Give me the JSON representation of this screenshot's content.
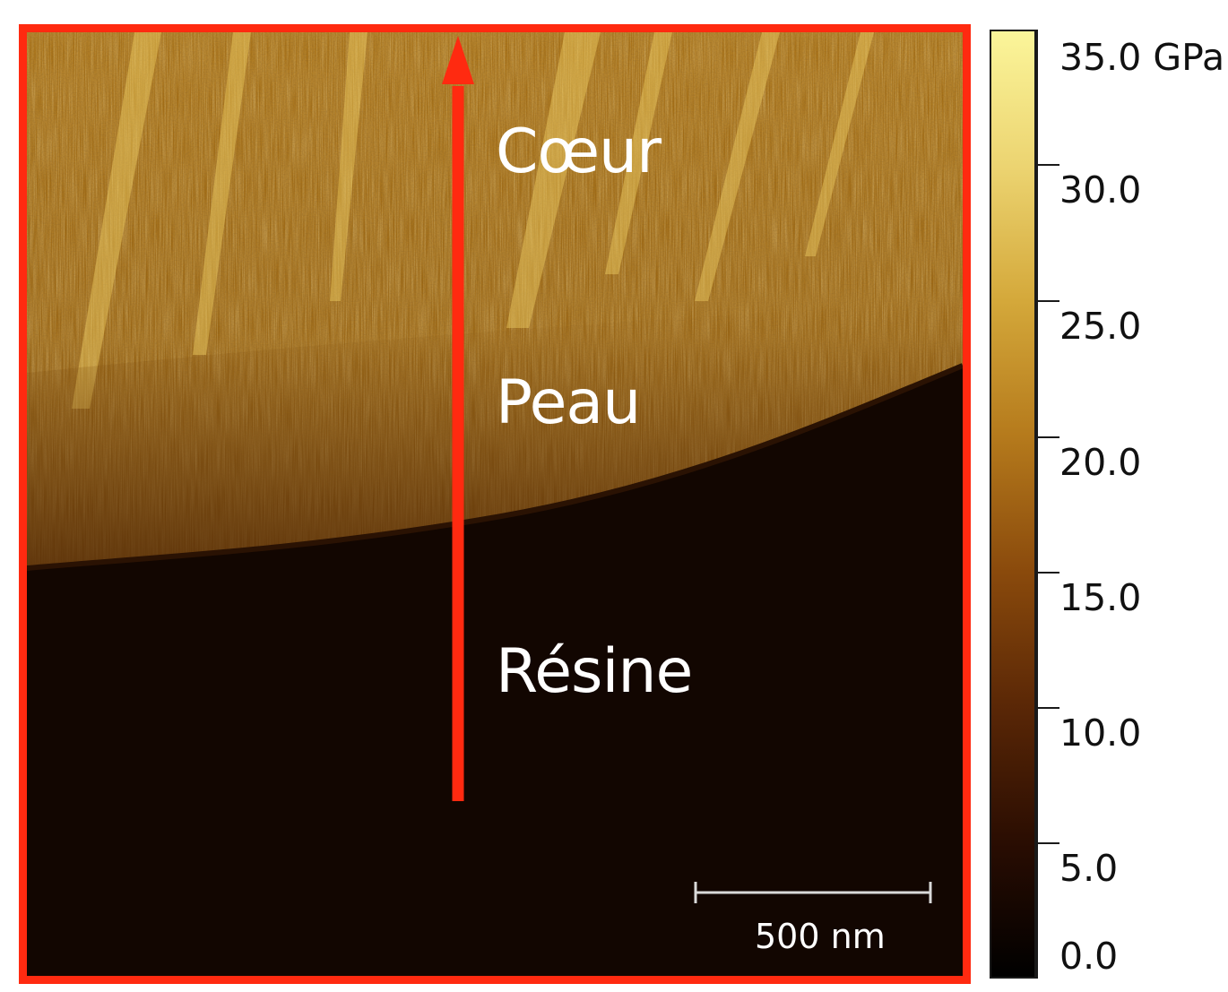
{
  "image": {
    "regions": {
      "core": "Cœur",
      "skin": "Peau",
      "resin": "Résine"
    },
    "scale_bar": {
      "label": "500 nm"
    },
    "colors": {
      "frame": "#ff2a10",
      "arrow": "#ff2a10",
      "resin": "#120601",
      "core": "#b07818",
      "highlight": "#f4e48e"
    }
  },
  "colorbar": {
    "ticks": [
      "35.0 GPa",
      "30.0",
      "25.0",
      "20.0",
      "15.0",
      "10.0",
      "5.0",
      "0.0"
    ],
    "range": [
      0,
      35
    ],
    "unit": "GPa",
    "gradient": [
      "#000000",
      "#2a0d02",
      "#5a2706",
      "#8a4a0c",
      "#b57a1c",
      "#d4a83a",
      "#ecd471",
      "#fbf59a"
    ]
  }
}
